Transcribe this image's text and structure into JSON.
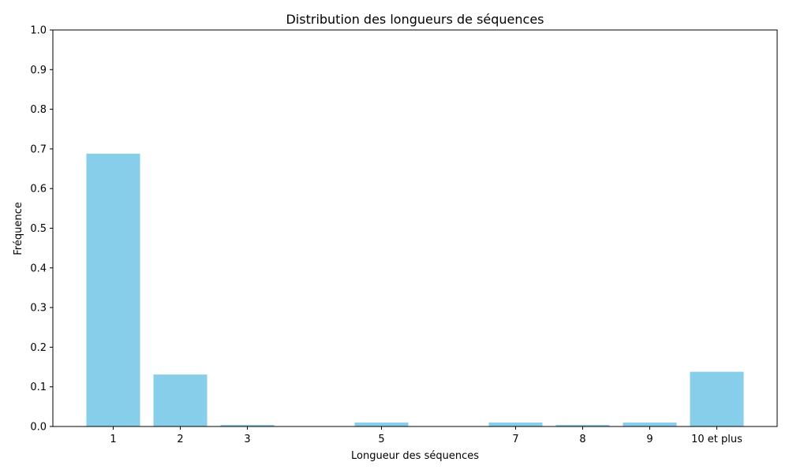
{
  "chart_data": {
    "type": "bar",
    "title": "Distribution des longueurs de séquences",
    "xlabel": "Longueur des séquences",
    "ylabel": "Fréquence",
    "categories": [
      "1",
      "2",
      "3",
      "5",
      "7",
      "8",
      "9",
      "10 et plus"
    ],
    "x_positions": [
      1,
      2,
      3,
      5,
      7,
      8,
      9,
      10
    ],
    "values": [
      0.688,
      0.131,
      0.004,
      0.01,
      0.01,
      0.004,
      0.01,
      0.138
    ],
    "ylim": [
      0,
      1.0
    ],
    "yticks": [
      "0.0",
      "0.1",
      "0.2",
      "0.3",
      "0.4",
      "0.5",
      "0.6",
      "0.7",
      "0.8",
      "0.9",
      "1.0"
    ],
    "bar_color": "#87ceeb",
    "grid": false,
    "legend": "none"
  }
}
